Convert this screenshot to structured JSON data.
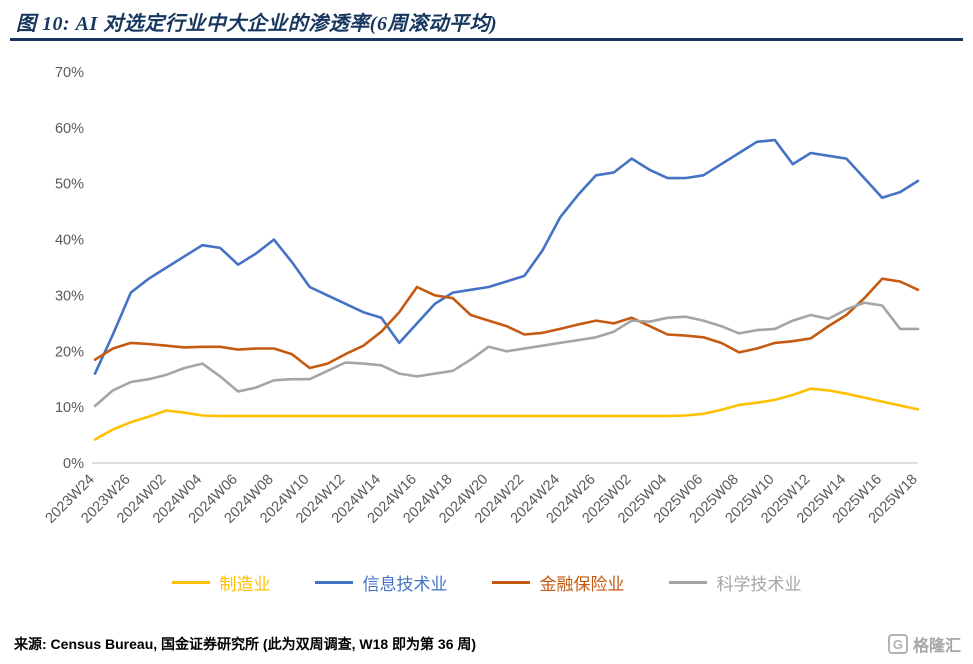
{
  "page": {
    "title": "图 10: AI 对选定行业中大企业的渗透率(6周滚动平均)",
    "footer": "来源: Census Bureau, 国金证券研究所 (此为双周调查, W18 即为第 36 周)",
    "logo_mark": "G",
    "logo_text": "格隆汇",
    "accent_color": "#17375E"
  },
  "chart_data": {
    "type": "line",
    "title": "图 10: AI 对选定行业中大企业的渗透率(6周滚动平均)",
    "xlabel": "",
    "ylabel": "",
    "ylim": [
      0,
      70
    ],
    "grid": false,
    "legend_position": "bottom",
    "y_tick_labels": [
      "0%",
      "10%",
      "20%",
      "30%",
      "40%",
      "50%",
      "60%",
      "70%"
    ],
    "x_tick_labels": [
      "2023W24",
      "2023W26",
      "2024W02",
      "2024W04",
      "2024W06",
      "2024W08",
      "2024W10",
      "2024W12",
      "2024W14",
      "2024W16",
      "2024W18",
      "2024W20",
      "2024W22",
      "2024W24",
      "2024W26",
      "2025W02",
      "2025W04",
      "2025W06",
      "2025W08",
      "2025W10",
      "2025W12",
      "2025W14",
      "2025W16",
      "2025W18"
    ],
    "label_every": 2,
    "n_points": 47,
    "series": [
      {
        "name": "制造业",
        "id": "manufacturing",
        "color": "#FFC000",
        "values": [
          4.2,
          6,
          7.3,
          8.3,
          9.4,
          9,
          8.5,
          8.4,
          8.4,
          8.4,
          8.4,
          8.4,
          8.4,
          8.4,
          8.4,
          8.4,
          8.4,
          8.4,
          8.4,
          8.4,
          8.4,
          8.4,
          8.4,
          8.4,
          8.4,
          8.4,
          8.4,
          8.4,
          8.4,
          8.4,
          8.4,
          8.4,
          8.4,
          8.5,
          8.8,
          9.5,
          10.4,
          10.8,
          11.3,
          12.2,
          13.3,
          13,
          12.4,
          11.7,
          11,
          10.3,
          9.6
        ]
      },
      {
        "name": "信息技术业",
        "id": "information-technology",
        "color": "#4472C4",
        "values": [
          16,
          23,
          30.5,
          33,
          35,
          37,
          39,
          38.5,
          35.5,
          37.5,
          40,
          36,
          31.5,
          30,
          28.5,
          27,
          26,
          21.5,
          25,
          28.5,
          30.5,
          31,
          31.5,
          32.5,
          33.5,
          38,
          44,
          48,
          51.5,
          52,
          54.5,
          52.5,
          51,
          51,
          51.5,
          53.5,
          55.5,
          57.5,
          57.8,
          53.5,
          55.5,
          55,
          54.5,
          51,
          47.5,
          48.5,
          50.5
        ]
      },
      {
        "name": "金融保险业",
        "id": "finance-insurance",
        "color": "#C55A11",
        "values": [
          18.5,
          20.5,
          21.5,
          21.3,
          21,
          20.7,
          20.8,
          20.8,
          20.3,
          20.5,
          20.5,
          19.5,
          17,
          17.8,
          19.5,
          21,
          23.5,
          27,
          31.5,
          30,
          29.5,
          26.5,
          25.5,
          24.5,
          23,
          23.3,
          24,
          24.8,
          25.5,
          25,
          26,
          24.5,
          23,
          22.8,
          22.5,
          21.5,
          19.8,
          20.5,
          21.5,
          21.8,
          22.3,
          24.5,
          26.5,
          29.5,
          33,
          32.5,
          31
        ]
      },
      {
        "name": "科学技术业",
        "id": "science-technology",
        "color": "#A5A5A5",
        "values": [
          10.2,
          13,
          14.5,
          15,
          15.8,
          17,
          17.8,
          15.5,
          12.8,
          13.5,
          14.8,
          15,
          15,
          16.5,
          18,
          17.8,
          17.5,
          16,
          15.5,
          16,
          16.5,
          18.5,
          20.8,
          20,
          20.5,
          21,
          21.5,
          22,
          22.5,
          23.5,
          25.5,
          25.3,
          26,
          26.2,
          25.5,
          24.5,
          23.2,
          23.8,
          24,
          25.5,
          26.5,
          25.8,
          27.5,
          28.7,
          28.2,
          24,
          24
        ]
      }
    ]
  }
}
